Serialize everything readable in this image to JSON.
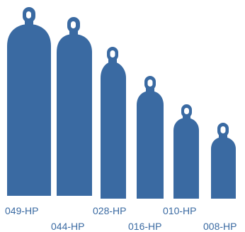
{
  "figure": {
    "color": "#3a6aa2",
    "label_color": "#3a6aa2",
    "cylinders": [
      {
        "label": "049-HP"
      },
      {
        "label": "044-HP"
      },
      {
        "label": "028-HP"
      },
      {
        "label": "016-HP"
      },
      {
        "label": "010-HP"
      },
      {
        "label": "008-HP"
      }
    ]
  }
}
